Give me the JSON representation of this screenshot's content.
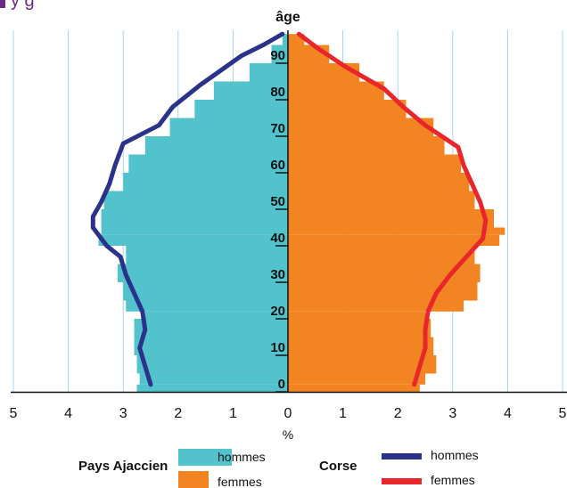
{
  "header": {
    "partial_title": "y    g"
  },
  "chart_data": {
    "type": "population-pyramid",
    "y_axis_title": "âge",
    "x_axis_unit": "%",
    "x_tick_labels": [
      "5",
      "4",
      "3",
      "2",
      "1",
      "0",
      "1",
      "2",
      "3",
      "4",
      "5"
    ],
    "xlim": [
      -5,
      5
    ],
    "ylim": [
      0,
      98
    ],
    "age_ticks": [
      0,
      10,
      20,
      30,
      40,
      50,
      60,
      70,
      80,
      90
    ],
    "grid_vertical": true,
    "legend": {
      "group1": "Pays Ajaccien",
      "group2": "Corse",
      "hommes": "hommes",
      "femmes": "femmes"
    },
    "colors": {
      "pays_hommes": "#52c3cd",
      "pays_femmes": "#f28522",
      "corse_hommes": "#2a3289",
      "corse_femmes": "#e8262b",
      "grid": "#a8d2ec"
    },
    "pays_ajaccien": {
      "age_bands": [
        0,
        2,
        5,
        10,
        15,
        20,
        22,
        25,
        30,
        35,
        40,
        43,
        45,
        50,
        55,
        60,
        65,
        70,
        75,
        80,
        85,
        90,
        95
      ],
      "hommes": [
        2.75,
        2.7,
        2.75,
        2.8,
        2.8,
        2.6,
        2.95,
        3.0,
        3.1,
        2.95,
        3.45,
        3.4,
        3.4,
        3.35,
        3.0,
        2.9,
        2.6,
        2.15,
        1.7,
        1.35,
        0.7,
        0.3,
        0.1
      ],
      "femmes": [
        2.4,
        2.5,
        2.7,
        2.65,
        2.6,
        2.5,
        3.2,
        3.45,
        3.5,
        3.4,
        3.85,
        3.95,
        3.75,
        3.4,
        3.3,
        3.15,
        2.85,
        2.65,
        2.15,
        1.75,
        1.3,
        0.75,
        0.3
      ]
    },
    "corse": {
      "hommes_points": [
        [
          2.5,
          2
        ],
        [
          2.6,
          7
        ],
        [
          2.7,
          12
        ],
        [
          2.6,
          17
        ],
        [
          2.65,
          22
        ],
        [
          2.8,
          27
        ],
        [
          2.95,
          32
        ],
        [
          3.05,
          37
        ],
        [
          3.3,
          40
        ],
        [
          3.55,
          45
        ],
        [
          3.55,
          48
        ],
        [
          3.4,
          52
        ],
        [
          3.25,
          57
        ],
        [
          3.15,
          62
        ],
        [
          3.0,
          68
        ],
        [
          2.35,
          73
        ],
        [
          2.1,
          78
        ],
        [
          1.6,
          84
        ],
        [
          0.85,
          92
        ],
        [
          0.45,
          95
        ],
        [
          0.1,
          98
        ]
      ],
      "femmes_points": [
        [
          2.3,
          2
        ],
        [
          2.4,
          7
        ],
        [
          2.5,
          12
        ],
        [
          2.5,
          17
        ],
        [
          2.55,
          22
        ],
        [
          2.7,
          27
        ],
        [
          2.95,
          32
        ],
        [
          3.25,
          37
        ],
        [
          3.55,
          42
        ],
        [
          3.6,
          47
        ],
        [
          3.5,
          52
        ],
        [
          3.35,
          57
        ],
        [
          3.2,
          62
        ],
        [
          3.1,
          67
        ],
        [
          2.5,
          73
        ],
        [
          2.1,
          78
        ],
        [
          1.75,
          83
        ],
        [
          1.05,
          89
        ],
        [
          0.55,
          94
        ],
        [
          0.2,
          98
        ]
      ]
    }
  }
}
